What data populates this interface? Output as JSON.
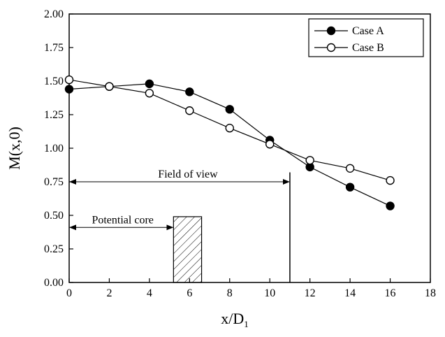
{
  "chart_data": {
    "type": "line",
    "xlabel": "x/D",
    "xlabel_subscript": "1",
    "ylabel": "M(x,0)",
    "xlim": [
      0,
      18
    ],
    "ylim": [
      0,
      2.0
    ],
    "xticks": [
      0,
      2,
      4,
      6,
      8,
      10,
      12,
      14,
      16,
      18
    ],
    "yticks": [
      0.0,
      0.25,
      0.5,
      0.75,
      1.0,
      1.25,
      1.5,
      1.75,
      2.0
    ],
    "ytick_labels": [
      "0.00",
      "0.25",
      "0.50",
      "0.75",
      "1.00",
      "1.25",
      "1.50",
      "1.75",
      "2.00"
    ],
    "grid": false,
    "legend_position": "top-right",
    "series": [
      {
        "name": "Case A",
        "marker": "filled-circle",
        "x": [
          0,
          2,
          4,
          6,
          8,
          10,
          12,
          14,
          16
        ],
        "y": [
          1.44,
          1.46,
          1.48,
          1.42,
          1.29,
          1.06,
          0.86,
          0.71,
          0.57
        ]
      },
      {
        "name": "Case B",
        "marker": "open-circle",
        "x": [
          0,
          2,
          4,
          6,
          8,
          10,
          12,
          14,
          16
        ],
        "y": [
          1.51,
          1.46,
          1.41,
          1.28,
          1.15,
          1.03,
          0.91,
          0.85,
          0.76
        ]
      }
    ],
    "annotations": {
      "field_of_view": {
        "label": "Field of view",
        "x_start": 0,
        "x_end": 11,
        "y": 0.75
      },
      "potential_core": {
        "label": "Potential core",
        "x_start": 0,
        "x_end": 5.2,
        "y": 0.41
      },
      "hatched_box": {
        "x_start": 5.2,
        "x_end": 6.6,
        "y_top": 0.49
      },
      "vertical_line": {
        "x": 11,
        "y_top": 0.82
      }
    }
  }
}
